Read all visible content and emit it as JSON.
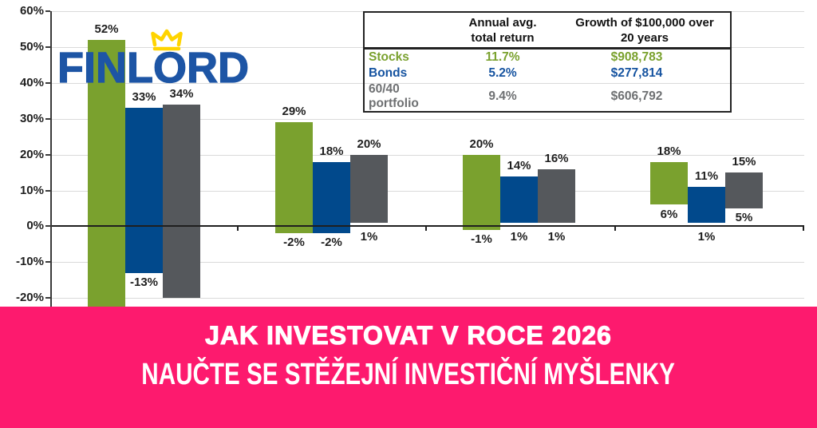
{
  "theme": {
    "grid": "#DADADA",
    "ink": "#1F1F1F",
    "axis": "#3A3A3A",
    "background": "#FFFFFF"
  },
  "logo": {
    "text": "FINLORD",
    "color": "#1D55A5",
    "crown_color": "#FFD400"
  },
  "summary_table": {
    "header": {
      "annual_line1": "Annual avg.",
      "annual_line2": "total return",
      "growth_line1": "Growth of $100,000 over",
      "growth_line2": "20 years"
    },
    "rows": [
      {
        "label": "Stocks",
        "annual_return": "11.7%",
        "growth": "$908,783",
        "color": "#7AA12E"
      },
      {
        "label": "Bonds",
        "annual_return": "5.2%",
        "growth": "$277,814",
        "color": "#1553A0"
      },
      {
        "label": "60/40 portfolio",
        "annual_return": "9.4%",
        "growth": "$606,792",
        "color": "#6E7072"
      }
    ]
  },
  "banner": {
    "background": "#FD1A6E",
    "text_color": "#FFFFFF",
    "title": "JAK INVESTOVAT V ROCE 2026",
    "subtitle": "NAUČTE SE STĚŽEJNÍ INVESTIČNÍ MYŠLENKY"
  },
  "chart_data": {
    "type": "bar",
    "subtype": "floating-range-columns",
    "title": "",
    "xlabel": "",
    "ylabel": "",
    "grid": true,
    "y_tick_labels": [
      "60%",
      "50%",
      "40%",
      "30%",
      "20%",
      "10%",
      "0%",
      "-10%",
      "-20%"
    ],
    "y_tick_values": [
      60,
      50,
      40,
      30,
      20,
      10,
      0,
      -10,
      -20
    ],
    "ylim_visible": [
      -22,
      60
    ],
    "legend": "summary table, top-right",
    "series": [
      {
        "name": "Stocks",
        "color": "#7AA12E"
      },
      {
        "name": "Bonds",
        "color": "#01498C"
      },
      {
        "name": "60/40 portfolio",
        "color": "#55585C"
      }
    ],
    "groups": [
      {
        "bars": [
          {
            "series": "Stocks",
            "high": 52,
            "high_label": "52%",
            "low": null,
            "low_label": "",
            "low_clipped": true
          },
          {
            "series": "Bonds",
            "high": 33,
            "high_label": "33%",
            "low": -13,
            "low_label": "-13%"
          },
          {
            "series": "60/40 portfolio",
            "high": 34,
            "high_label": "34%",
            "low": -20,
            "low_label": ""
          }
        ]
      },
      {
        "bars": [
          {
            "series": "Stocks",
            "high": 29,
            "high_label": "29%",
            "low": -2,
            "low_label": "-2%"
          },
          {
            "series": "Bonds",
            "high": 18,
            "high_label": "18%",
            "low": -2,
            "low_label": "-2%"
          },
          {
            "series": "60/40 portfolio",
            "high": 20,
            "high_label": "20%",
            "low": 1,
            "low_label": "1%"
          }
        ]
      },
      {
        "bars": [
          {
            "series": "Stocks",
            "high": 20,
            "high_label": "20%",
            "low": -1,
            "low_label": "-1%"
          },
          {
            "series": "Bonds",
            "high": 14,
            "high_label": "14%",
            "low": 1,
            "low_label": "1%"
          },
          {
            "series": "60/40 portfolio",
            "high": 16,
            "high_label": "16%",
            "low": 1,
            "low_label": "1%"
          }
        ]
      },
      {
        "bars": [
          {
            "series": "Stocks",
            "high": 18,
            "high_label": "18%",
            "low": 6,
            "low_label": "6%"
          },
          {
            "series": "Bonds",
            "high": 11,
            "high_label": "11%",
            "low": 1,
            "low_label": "1%"
          },
          {
            "series": "60/40 portfolio",
            "high": 15,
            "high_label": "15%",
            "low": 5,
            "low_label": "5%"
          }
        ]
      }
    ]
  }
}
